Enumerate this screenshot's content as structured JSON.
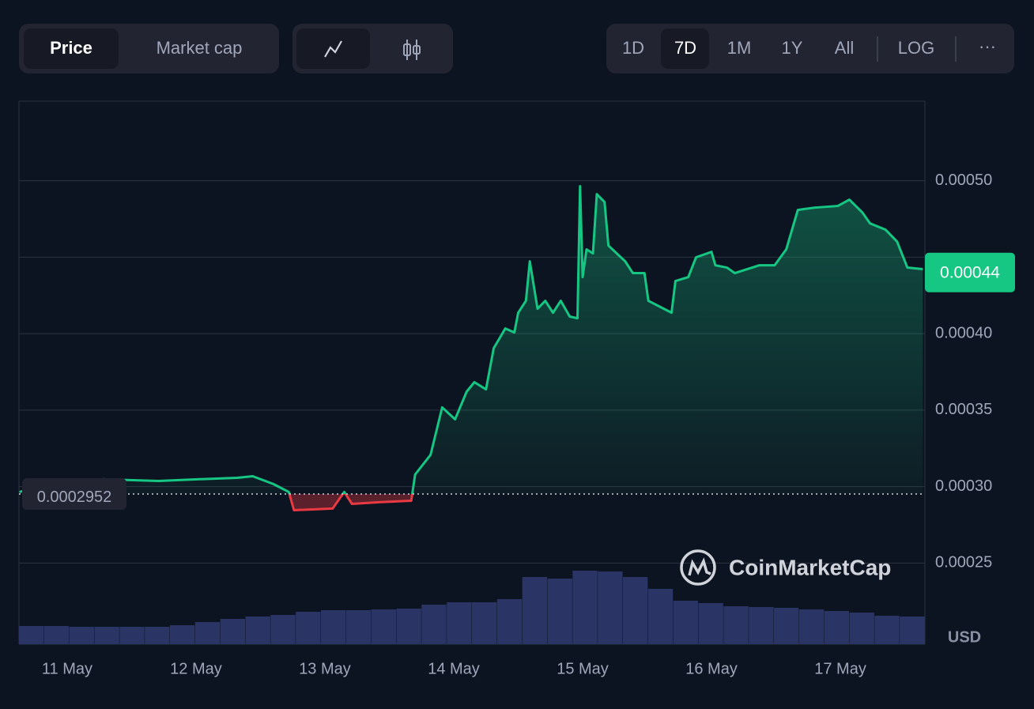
{
  "toolbar": {
    "metric_tabs": [
      "Price",
      "Market cap"
    ],
    "ranges": [
      "1D",
      "7D",
      "1M",
      "1Y",
      "All"
    ],
    "log": "LOG",
    "more": "···"
  },
  "watermark": "CoinMarketCap",
  "currency": "USD",
  "chart_data": {
    "type": "line",
    "x": [
      10.63,
      10.85,
      11.28,
      11.71,
      12.01,
      12.32,
      12.44,
      12.6,
      12.72,
      12.76,
      13.06,
      13.15,
      13.21,
      13.42,
      13.67,
      13.7,
      13.82,
      13.91,
      14.01,
      14.1,
      14.16,
      14.25,
      14.31,
      14.4,
      14.47,
      14.5,
      14.56,
      14.59,
      14.65,
      14.71,
      14.77,
      14.83,
      14.9,
      14.96,
      14.98,
      15.0,
      15.03,
      15.08,
      15.11,
      15.17,
      15.2,
      15.33,
      15.39,
      15.48,
      15.51,
      15.63,
      15.69,
      15.72,
      15.82,
      15.88,
      16.0,
      16.03,
      16.12,
      16.18,
      16.37,
      16.49,
      16.58,
      16.67,
      16.8,
      16.98,
      17.07,
      17.17,
      17.23,
      17.35,
      17.44,
      17.52,
      17.64
    ],
    "series": [
      {
        "name": "Price",
        "color": "#16c784",
        "values": [
          0.0002965,
          0.0003017,
          0.0003048,
          0.0003037,
          0.0003048,
          0.0003058,
          0.0003068,
          0.0003017,
          0.0002965,
          0.0002846,
          0.0002857,
          0.0002965,
          0.0002887,
          0.0002898,
          0.0002908,
          0.0003079,
          0.0003208,
          0.0003518,
          0.000344,
          0.0003621,
          0.0003683,
          0.0003636,
          0.0003905,
          0.0004034,
          0.0004008,
          0.0004137,
          0.0004215,
          0.0004473,
          0.0004163,
          0.0004215,
          0.0004137,
          0.0004215,
          0.0004112,
          0.0004101,
          0.0004964,
          0.000437,
          0.0004551,
          0.0004525,
          0.0004912,
          0.0004861,
          0.0004576,
          0.0004473,
          0.0004396,
          0.0004396,
          0.0004215,
          0.0004163,
          0.0004137,
          0.0004344,
          0.000437,
          0.0004499,
          0.0004535,
          0.0004447,
          0.0004432,
          0.0004396,
          0.0004447,
          0.0004447,
          0.0004551,
          0.0004809,
          0.0004824,
          0.0004835,
          0.0004876,
          0.0004793,
          0.0004721,
          0.000468,
          0.0004602,
          0.0004432,
          0.0004422
        ]
      }
    ],
    "down_color": "#ea3943",
    "reference": 0.0002952,
    "current_price": 0.00044,
    "xlim": [
      10.626,
      17.656
    ],
    "xticks": [
      {
        "value": 11,
        "label": "11 May"
      },
      {
        "value": 12,
        "label": "12 May"
      },
      {
        "value": 13,
        "label": "13 May"
      },
      {
        "value": 14,
        "label": "14 May"
      },
      {
        "value": 15,
        "label": "15 May"
      },
      {
        "value": 16,
        "label": "16 May"
      },
      {
        "value": 17,
        "label": "17 May"
      }
    ],
    "ylim": [
      0.000197,
      0.000552
    ],
    "yticks": [
      {
        "value": 0.00025,
        "label": "0.00025"
      },
      {
        "value": 0.0003,
        "label": "0.00030"
      },
      {
        "value": 0.00035,
        "label": "0.00035"
      },
      {
        "value": 0.0004,
        "label": "0.00040"
      },
      {
        "value": 0.00045,
        "label": null
      },
      {
        "value": 0.0005,
        "label": "0.00050"
      }
    ],
    "grid": true,
    "volume": {
      "color": "#2a3566",
      "ylim": [
        0,
        100
      ],
      "values": [
        23,
        23,
        22,
        22,
        22,
        22,
        24,
        28,
        32,
        35,
        37,
        41,
        43,
        43,
        44,
        45,
        50,
        53,
        53,
        57,
        85,
        83,
        93,
        92,
        85,
        70,
        55,
        52,
        48,
        47,
        46,
        44,
        42,
        40,
        36,
        35
      ]
    }
  }
}
